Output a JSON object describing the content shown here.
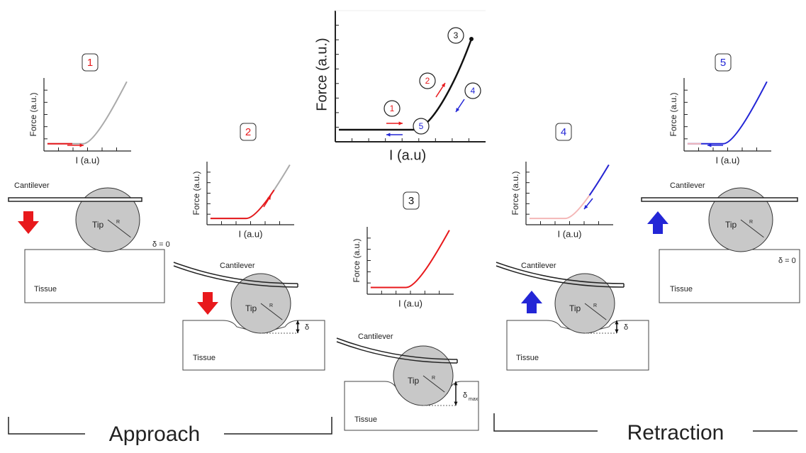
{
  "main_plot": {
    "y_label": "Force (a.u.)",
    "x_label": "I (a.u)",
    "markers": [
      "1",
      "2",
      "3",
      "4",
      "5"
    ]
  },
  "panels": [
    {
      "step": "1",
      "y_label": "Force (a.u.)",
      "x_label": "I (a.u)",
      "cantilever": "Cantilever",
      "tip": "Tip",
      "radius": "R",
      "tissue": "Tissue",
      "delta": "δ = 0"
    },
    {
      "step": "2",
      "y_label": "Force (a.u.)",
      "x_label": "I (a.u)",
      "cantilever": "Cantilever",
      "tip": "Tip",
      "radius": "R",
      "tissue": "Tissue",
      "delta": "δ"
    },
    {
      "step": "3",
      "y_label": "Force (a.u.)",
      "x_label": "I (a.u)",
      "cantilever": "Cantilever",
      "tip": "Tip",
      "radius": "R",
      "tissue": "Tissue",
      "delta": "δ",
      "delta_sub": "max"
    },
    {
      "step": "4",
      "y_label": "Force (a.u.)",
      "x_label": "I (a.u)",
      "cantilever": "Cantilever",
      "tip": "Tip",
      "radius": "R",
      "tissue": "Tissue",
      "delta": "δ"
    },
    {
      "step": "5",
      "y_label": "Force (a.u.)",
      "x_label": "I (a.u)",
      "cantilever": "Cantilever",
      "tip": "Tip",
      "radius": "R",
      "tissue": "Tissue",
      "delta": "δ = 0"
    }
  ],
  "phases": [
    "Approach",
    "Retraction"
  ]
}
